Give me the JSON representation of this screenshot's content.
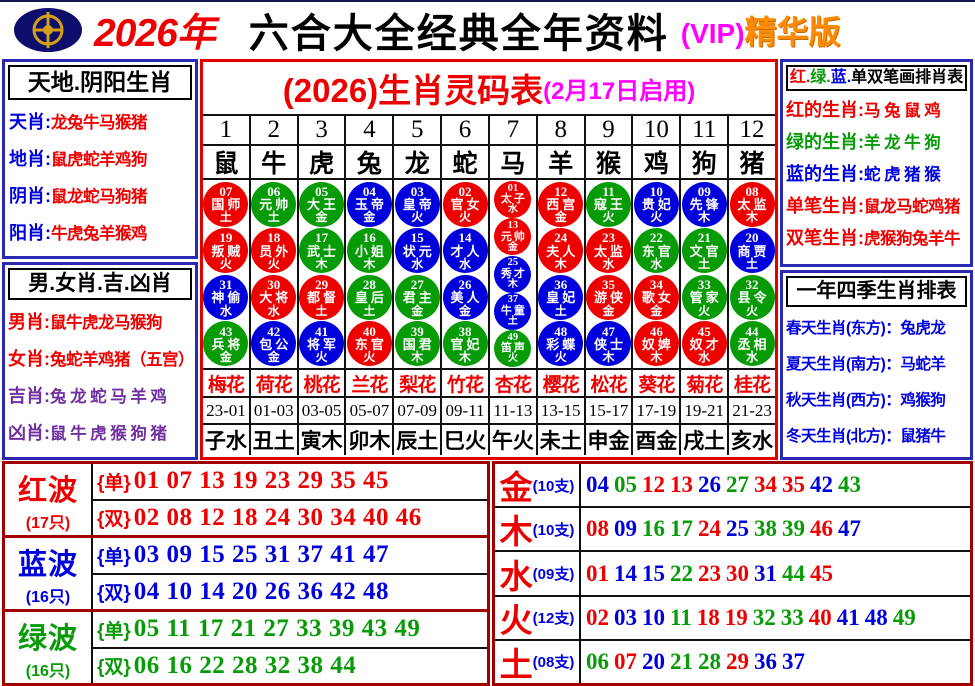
{
  "palette": {
    "red": "#ee0000",
    "green": "#089b08",
    "blue": "#0000dd",
    "purple": "#7030a0",
    "magenta": "#ff00ff",
    "orange": "#ff8c00",
    "black": "#000000"
  },
  "header": {
    "year": "2026年",
    "title": "六合大全经典全年资料",
    "vip_prefix": "(VIP)",
    "vip_suffix": "精华版"
  },
  "left_top": {
    "header": "天地.阴阳生肖",
    "rows": [
      {
        "label": "天肖:",
        "label_color": "blue",
        "value": "龙兔牛马猴猪",
        "value_color": "red"
      },
      {
        "label": "地肖:",
        "label_color": "blue",
        "value": "鼠虎蛇羊鸡狗",
        "value_color": "red"
      },
      {
        "label": "阴肖:",
        "label_color": "blue",
        "value": "鼠龙蛇马狗猪",
        "value_color": "red"
      },
      {
        "label": "阳肖:",
        "label_color": "blue",
        "value": "牛虎兔羊猴鸡",
        "value_color": "red"
      }
    ]
  },
  "left_bottom": {
    "header": "男.女肖.吉.凶肖",
    "rows": [
      {
        "label": "男肖:",
        "label_color": "red",
        "value": "鼠牛虎龙马猴狗",
        "value_color": "red"
      },
      {
        "label": "女肖:",
        "label_color": "red",
        "value": "兔蛇羊鸡猪（五宫）",
        "value_color": "red"
      },
      {
        "label": "吉肖:",
        "label_color": "purple",
        "value": "兔 龙 蛇 马 羊 鸡",
        "value_color": "purple"
      },
      {
        "label": "凶肖:",
        "label_color": "purple",
        "value": "鼠 牛 虎 猴 狗 猪",
        "value_color": "purple"
      }
    ]
  },
  "main_table": {
    "title": "(2026)生肖灵码表",
    "subtitle": "(2月17日启用)",
    "column_numbers": [
      "1",
      "2",
      "3",
      "4",
      "5",
      "6",
      "7",
      "8",
      "9",
      "10",
      "11",
      "12"
    ],
    "zodiacs": [
      "鼠",
      "牛",
      "虎",
      "兔",
      "龙",
      "蛇",
      "马",
      "羊",
      "猴",
      "鸡",
      "狗",
      "猪"
    ],
    "columns": [
      {
        "balls": [
          {
            "num": "07",
            "name": "国师",
            "element": "土",
            "color": "red"
          },
          {
            "num": "19",
            "name": "叛贼",
            "element": "火",
            "color": "red"
          },
          {
            "num": "31",
            "name": "神偷",
            "element": "水",
            "color": "blue"
          },
          {
            "num": "43",
            "name": "兵将",
            "element": "金",
            "color": "green"
          }
        ]
      },
      {
        "balls": [
          {
            "num": "06",
            "name": "元帅",
            "element": "土",
            "color": "green"
          },
          {
            "num": "18",
            "name": "员外",
            "element": "火",
            "color": "red"
          },
          {
            "num": "30",
            "name": "大将",
            "element": "水",
            "color": "red"
          },
          {
            "num": "42",
            "name": "包公",
            "element": "金",
            "color": "blue"
          }
        ]
      },
      {
        "balls": [
          {
            "num": "05",
            "name": "大王",
            "element": "金",
            "color": "green"
          },
          {
            "num": "17",
            "name": "武士",
            "element": "木",
            "color": "green"
          },
          {
            "num": "29",
            "name": "都督",
            "element": "土",
            "color": "red"
          },
          {
            "num": "41",
            "name": "将军",
            "element": "火",
            "color": "blue"
          }
        ]
      },
      {
        "balls": [
          {
            "num": "04",
            "name": "玉帝",
            "element": "金",
            "color": "blue"
          },
          {
            "num": "16",
            "name": "小姐",
            "element": "木",
            "color": "green"
          },
          {
            "num": "28",
            "name": "皇后",
            "element": "土",
            "color": "green"
          },
          {
            "num": "40",
            "name": "东官",
            "element": "火",
            "color": "red"
          }
        ]
      },
      {
        "balls": [
          {
            "num": "03",
            "name": "皇帝",
            "element": "火",
            "color": "blue"
          },
          {
            "num": "15",
            "name": "状元",
            "element": "水",
            "color": "blue"
          },
          {
            "num": "27",
            "name": "君主",
            "element": "金",
            "color": "green"
          },
          {
            "num": "39",
            "name": "国君",
            "element": "木",
            "color": "green"
          }
        ]
      },
      {
        "balls": [
          {
            "num": "02",
            "name": "官女",
            "element": "火",
            "color": "red"
          },
          {
            "num": "14",
            "name": "才人",
            "element": "水",
            "color": "blue"
          },
          {
            "num": "26",
            "name": "美人",
            "element": "金",
            "color": "blue"
          },
          {
            "num": "38",
            "name": "官妃",
            "element": "木",
            "color": "green"
          }
        ]
      },
      {
        "balls": [
          {
            "num": "01",
            "name": "太子",
            "element": "水",
            "color": "red"
          },
          {
            "num": "13",
            "name": "元帅",
            "element": "金",
            "color": "red"
          },
          {
            "num": "25",
            "name": "秀才",
            "element": "木",
            "color": "blue"
          },
          {
            "num": "37",
            "name": "牛童",
            "element": "土",
            "color": "blue"
          },
          {
            "num": "49",
            "name": "笛声",
            "element": "火",
            "color": "green"
          }
        ]
      },
      {
        "balls": [
          {
            "num": "12",
            "name": "西宫",
            "element": "金",
            "color": "red"
          },
          {
            "num": "24",
            "name": "夫人",
            "element": "木",
            "color": "red"
          },
          {
            "num": "36",
            "name": "皇妃",
            "element": "土",
            "color": "blue"
          },
          {
            "num": "48",
            "name": "彩蝶",
            "element": "火",
            "color": "blue"
          }
        ]
      },
      {
        "balls": [
          {
            "num": "11",
            "name": "寇王",
            "element": "火",
            "color": "green"
          },
          {
            "num": "23",
            "name": "太监",
            "element": "水",
            "color": "red"
          },
          {
            "num": "35",
            "name": "游侠",
            "element": "金",
            "color": "red"
          },
          {
            "num": "47",
            "name": "侠士",
            "element": "木",
            "color": "blue"
          }
        ]
      },
      {
        "balls": [
          {
            "num": "10",
            "name": "贵妃",
            "element": "火",
            "color": "blue"
          },
          {
            "num": "22",
            "name": "东官",
            "element": "水",
            "color": "green"
          },
          {
            "num": "34",
            "name": "歌女",
            "element": "金",
            "color": "red"
          },
          {
            "num": "46",
            "name": "奴婢",
            "element": "木",
            "color": "red"
          }
        ]
      },
      {
        "balls": [
          {
            "num": "09",
            "name": "先锋",
            "element": "木",
            "color": "blue"
          },
          {
            "num": "21",
            "name": "文官",
            "element": "土",
            "color": "green"
          },
          {
            "num": "33",
            "name": "管家",
            "element": "火",
            "color": "green"
          },
          {
            "num": "45",
            "name": "奴才",
            "element": "水",
            "color": "red"
          }
        ]
      },
      {
        "balls": [
          {
            "num": "08",
            "name": "太监",
            "element": "木",
            "color": "red"
          },
          {
            "num": "20",
            "name": "商贾",
            "element": "土",
            "color": "blue"
          },
          {
            "num": "32",
            "name": "县令",
            "element": "火",
            "color": "green"
          },
          {
            "num": "44",
            "name": "丞相",
            "element": "水",
            "color": "green"
          }
        ]
      }
    ],
    "flowers": [
      "梅花",
      "荷花",
      "桃花",
      "兰花",
      "梨花",
      "竹花",
      "杏花",
      "樱花",
      "松花",
      "葵花",
      "菊花",
      "桂花"
    ],
    "hours": [
      "23-01",
      "01-03",
      "03-05",
      "05-07",
      "07-09",
      "09-11",
      "11-13",
      "13-15",
      "15-17",
      "17-19",
      "19-21",
      "21-23"
    ],
    "branches": [
      "子水",
      "丑土",
      "寅木",
      "卯木",
      "辰土",
      "巳火",
      "午火",
      "未土",
      "申金",
      "酉金",
      "戌土",
      "亥水"
    ]
  },
  "right_top": {
    "header_parts": [
      {
        "text": "红.",
        "color": "red"
      },
      {
        "text": "绿.",
        "color": "green"
      },
      {
        "text": "蓝.",
        "color": "blue"
      },
      {
        "text": "单双笔画排肖表",
        "color": "black"
      }
    ],
    "rows": [
      {
        "label": "红的生肖:",
        "label_color": "red",
        "value": "马 兔 鼠 鸡",
        "value_color": "red"
      },
      {
        "label": "绿的生肖:",
        "label_color": "green",
        "value": "羊 龙 牛 狗",
        "value_color": "green"
      },
      {
        "label": "蓝的生肖:",
        "label_color": "blue",
        "value": "蛇 虎 猪 猴",
        "value_color": "blue"
      },
      {
        "label": "单笔生肖:",
        "label_color": "red",
        "value": "鼠龙马蛇鸡猪",
        "value_color": "red"
      },
      {
        "label": "双笔生肖:",
        "label_color": "red",
        "value": "虎猴狗兔羊牛",
        "value_color": "red"
      }
    ]
  },
  "right_bottom": {
    "header": "一年四季生肖排表",
    "rows": [
      {
        "text": "春天生肖(东方)：兔虎龙",
        "color": "blue"
      },
      {
        "text": "夏天生肖(南方)：马蛇羊",
        "color": "blue"
      },
      {
        "text": "秋天生肖(西方)：鸡猴狗",
        "color": "blue"
      },
      {
        "text": "冬天生肖(北方)：鼠猪牛",
        "color": "blue"
      }
    ]
  },
  "waves": {
    "rows": [
      {
        "name": "红波",
        "count": "(17只)",
        "color": "red",
        "odd_label": "{单}",
        "odd": [
          "01",
          "07",
          "13",
          "19",
          "23",
          "29",
          "35",
          "45"
        ],
        "even_label": "{双}",
        "even": [
          "02",
          "08",
          "12",
          "18",
          "24",
          "30",
          "34",
          "40",
          "46"
        ]
      },
      {
        "name": "蓝波",
        "count": "(16只)",
        "color": "blue",
        "odd_label": "{单}",
        "odd": [
          "03",
          "09",
          "15",
          "25",
          "31",
          "37",
          "41",
          "47"
        ],
        "even_label": "{双}",
        "even": [
          "04",
          "10",
          "14",
          "20",
          "26",
          "36",
          "42",
          "48"
        ]
      },
      {
        "name": "绿波",
        "count": "(16只)",
        "color": "green",
        "odd_label": "{单}",
        "odd": [
          "05",
          "11",
          "17",
          "21",
          "27",
          "33",
          "39",
          "43",
          "49"
        ],
        "even_label": "{双}",
        "even": [
          "06",
          "16",
          "22",
          "28",
          "32",
          "38",
          "44"
        ]
      }
    ]
  },
  "elements": {
    "rows": [
      {
        "name": "金",
        "count": "(10支)",
        "numbers": [
          "04",
          "05",
          "12",
          "13",
          "26",
          "27",
          "34",
          "35",
          "42",
          "43"
        ]
      },
      {
        "name": "木",
        "count": "(10支)",
        "numbers": [
          "08",
          "09",
          "16",
          "17",
          "24",
          "25",
          "38",
          "39",
          "46",
          "47"
        ]
      },
      {
        "name": "水",
        "count": "(09支)",
        "numbers": [
          "01",
          "14",
          "15",
          "22",
          "23",
          "30",
          "31",
          "44",
          "45"
        ]
      },
      {
        "name": "火",
        "count": "(12支)",
        "numbers": [
          "02",
          "03",
          "10",
          "11",
          "18",
          "19",
          "32",
          "33",
          "40",
          "41",
          "48",
          "49"
        ]
      },
      {
        "name": "土",
        "count": "(08支)",
        "numbers": [
          "06",
          "07",
          "20",
          "21",
          "28",
          "29",
          "36",
          "37"
        ]
      }
    ]
  }
}
